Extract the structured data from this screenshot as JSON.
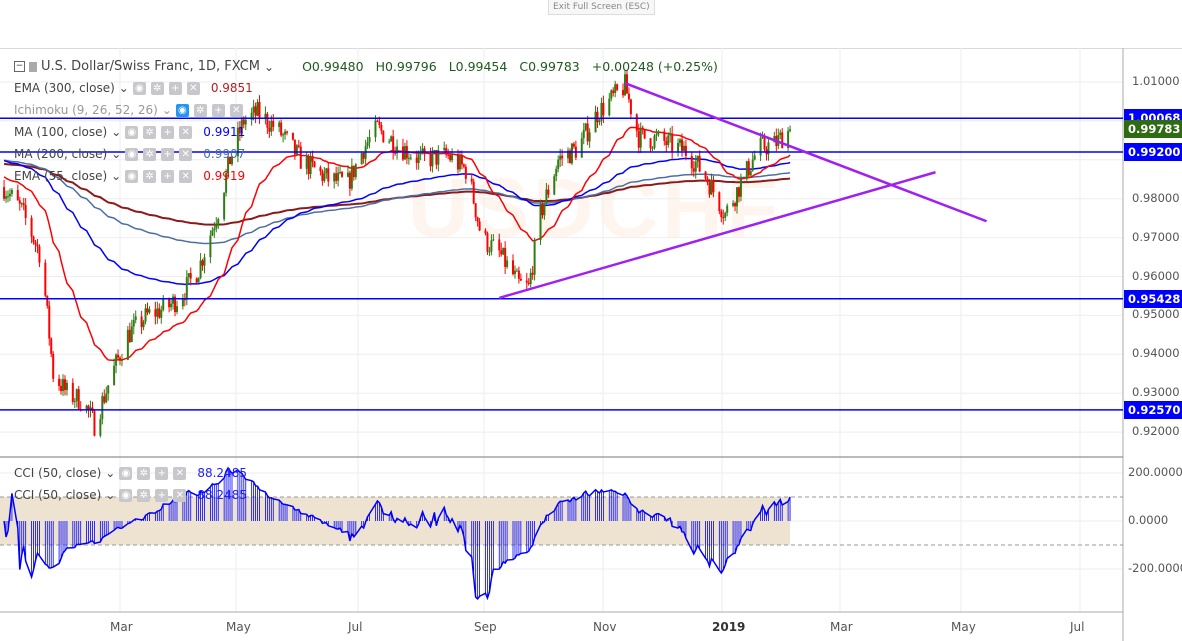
{
  "topbar": {
    "exit_label": "Exit Full Screen (ESC)"
  },
  "header": {
    "symbol": "U.S. Dollar/Swiss Franc, 1D, FXCM",
    "open": "O0.99480",
    "high": "H0.99796",
    "low": "L0.99454",
    "close": "C0.99783",
    "change": "+0.00248 (+0.25%)"
  },
  "indicators": [
    {
      "label": "EMA (300, close)",
      "value": "0.9851",
      "color": "#b71c1c"
    },
    {
      "label": "Ichimoku (9, 26, 52, 26)",
      "value": "",
      "color": "#999"
    },
    {
      "label": "MA (100, close)",
      "value": "0.9911",
      "color": "#0000ff"
    },
    {
      "label": "MA (200, close)",
      "value": "0.9907",
      "color": "#4a6fa5"
    },
    {
      "label": "EMA (55, close)",
      "value": "0.9919",
      "color": "#ff0000"
    }
  ],
  "cci_legends": [
    {
      "label": "CCI (50, close)",
      "value": "88.2485"
    },
    {
      "label": "CCI (50, close)",
      "value": "88.2485"
    }
  ],
  "icons": [
    "eye-icon",
    "gear-icon",
    "plus-icon",
    "close-icon"
  ],
  "chart_data": {
    "type": "candlestick",
    "symbol": "USDCHF",
    "price_ticks": [
      "1.01000",
      "0.98000",
      "0.97000",
      "0.96000",
      "0.95000",
      "0.94000",
      "0.93000",
      "0.92000"
    ],
    "price_labels": [
      {
        "text": "1.00068",
        "value": 1.00068,
        "color": "#0000ff"
      },
      {
        "text": "0.99783",
        "value": 0.99783,
        "color": "#2e6b12"
      },
      {
        "text": "0.99200",
        "value": 0.992,
        "color": "#0000ff"
      },
      {
        "text": "0.95428",
        "value": 0.95428,
        "color": "#0000ff"
      },
      {
        "text": "0.92570",
        "value": 0.9257,
        "color": "#0000ff"
      }
    ],
    "horizontal_levels": [
      1.00068,
      0.992,
      0.95428,
      0.9257
    ],
    "trendlines": [
      {
        "from": [
          "2018-11-13",
          1.0097
        ],
        "to": [
          "2019-05-16",
          0.9742
        ]
      },
      {
        "from": [
          "2018-09-10",
          0.9545
        ],
        "to": [
          "2019-04-20",
          0.9868
        ]
      }
    ],
    "time_ticks": [
      "Mar",
      "May",
      "Jul",
      "Sep",
      "Nov",
      "2019",
      "Mar",
      "May",
      "Jul"
    ],
    "cci_ticks": [
      "200.0000",
      "0.0000",
      "-200.0000"
    ],
    "cci_band": [
      -100,
      100
    ],
    "close_path": [
      [
        "2018-01-01",
        0.983
      ],
      [
        "2018-01-10",
        0.977
      ],
      [
        "2018-01-20",
        0.965
      ],
      [
        "2018-01-26",
        0.935
      ],
      [
        "2018-02-02",
        0.93
      ],
      [
        "2018-02-10",
        0.928
      ],
      [
        "2018-02-16",
        0.922
      ],
      [
        "2018-02-25",
        0.935
      ],
      [
        "2018-03-05",
        0.945
      ],
      [
        "2018-03-15",
        0.95
      ],
      [
        "2018-03-25",
        0.952
      ],
      [
        "2018-04-01",
        0.955
      ],
      [
        "2018-04-10",
        0.962
      ],
      [
        "2018-04-20",
        0.977
      ],
      [
        "2018-04-26",
        0.99
      ],
      [
        "2018-05-03",
        1.0
      ],
      [
        "2018-05-10",
        1.002
      ],
      [
        "2018-05-20",
        0.998
      ],
      [
        "2018-06-01",
        0.99
      ],
      [
        "2018-06-15",
        0.985
      ],
      [
        "2018-06-25",
        0.984
      ],
      [
        "2018-07-03",
        0.993
      ],
      [
        "2018-07-10",
        0.998
      ],
      [
        "2018-07-20",
        0.994
      ],
      [
        "2018-08-01",
        0.99
      ],
      [
        "2018-08-15",
        0.991
      ],
      [
        "2018-08-25",
        0.987
      ],
      [
        "2018-09-01",
        0.97
      ],
      [
        "2018-09-10",
        0.966
      ],
      [
        "2018-09-20",
        0.958
      ],
      [
        "2018-09-25",
        0.957
      ],
      [
        "2018-10-01",
        0.976
      ],
      [
        "2018-10-10",
        0.99
      ],
      [
        "2018-10-20",
        0.993
      ],
      [
        "2018-10-30",
        1.002
      ],
      [
        "2018-11-05",
        1.005
      ],
      [
        "2018-11-13",
        1.009
      ],
      [
        "2018-11-20",
        0.996
      ],
      [
        "2018-12-01",
        0.995
      ],
      [
        "2018-12-15",
        0.992
      ],
      [
        "2018-12-25",
        0.985
      ],
      [
        "2019-01-03",
        0.976
      ],
      [
        "2019-01-10",
        0.983
      ],
      [
        "2019-01-20",
        0.993
      ],
      [
        "2019-01-28",
        0.994
      ],
      [
        "2019-02-05",
        0.9978
      ]
    ],
    "colors": {
      "up": "#2e7d13",
      "down": "#ff0000",
      "ema55": "#ff0000",
      "ma100": "#0000ff",
      "ma200": "#4a6fa5",
      "ema300": "#8b1a1a",
      "levels": "#0000ff",
      "trend": "#a020f0",
      "cci": "#0000ff",
      "band": "#ede3d0"
    }
  }
}
